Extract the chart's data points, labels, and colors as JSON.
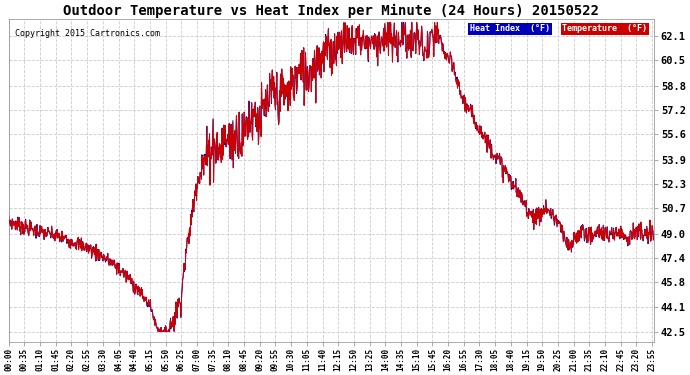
{
  "title": "Outdoor Temperature vs Heat Index per Minute (24 Hours) 20150522",
  "copyright": "Copyright 2015 Cartronics.com",
  "yticks": [
    42.5,
    44.1,
    45.8,
    47.4,
    49.0,
    50.7,
    52.3,
    53.9,
    55.6,
    57.2,
    58.8,
    60.5,
    62.1
  ],
  "ylim": [
    41.8,
    63.2
  ],
  "xlim": [
    0,
    1439
  ],
  "bg_color": "#ffffff",
  "plot_bg_color": "#ffffff",
  "grid_color": "#cccccc",
  "line_color": "#cc0000",
  "legend_heat_index_bg": "#0000bb",
  "legend_temp_bg": "#cc0000",
  "legend_heat_index_text": "Heat Index  (°F)",
  "legend_temp_text": "Temperature  (°F)",
  "xtick_labels": [
    "00:00",
    "00:35",
    "01:10",
    "01:45",
    "02:20",
    "02:55",
    "03:30",
    "04:05",
    "04:40",
    "05:15",
    "05:50",
    "06:25",
    "07:00",
    "07:35",
    "08:10",
    "08:45",
    "09:20",
    "09:55",
    "10:30",
    "11:05",
    "11:40",
    "12:15",
    "12:50",
    "13:25",
    "14:00",
    "14:35",
    "15:10",
    "15:45",
    "16:20",
    "16:55",
    "17:30",
    "18:05",
    "18:40",
    "19:15",
    "19:50",
    "20:25",
    "21:00",
    "21:35",
    "22:10",
    "22:45",
    "23:20",
    "23:55"
  ],
  "xtick_positions": [
    0,
    35,
    70,
    105,
    140,
    175,
    210,
    245,
    280,
    315,
    350,
    385,
    420,
    455,
    490,
    525,
    560,
    595,
    630,
    665,
    700,
    735,
    770,
    805,
    840,
    875,
    910,
    945,
    980,
    1015,
    1050,
    1085,
    1120,
    1155,
    1190,
    1225,
    1260,
    1295,
    1330,
    1365,
    1400,
    1435
  ],
  "curve_points": [
    [
      0,
      49.8
    ],
    [
      30,
      49.5
    ],
    [
      60,
      49.2
    ],
    [
      90,
      49.0
    ],
    [
      120,
      48.7
    ],
    [
      150,
      48.4
    ],
    [
      180,
      48.0
    ],
    [
      210,
      47.5
    ],
    [
      240,
      46.8
    ],
    [
      270,
      46.0
    ],
    [
      300,
      44.8
    ],
    [
      315,
      44.3
    ],
    [
      330,
      42.8
    ],
    [
      340,
      42.5
    ],
    [
      355,
      42.5
    ],
    [
      370,
      43.5
    ],
    [
      385,
      44.8
    ],
    [
      390,
      46.5
    ],
    [
      400,
      48.5
    ],
    [
      410,
      50.5
    ],
    [
      420,
      52.5
    ],
    [
      440,
      54.0
    ],
    [
      450,
      54.8
    ],
    [
      460,
      55.0
    ],
    [
      470,
      54.5
    ],
    [
      480,
      55.2
    ],
    [
      490,
      55.5
    ],
    [
      500,
      55.0
    ],
    [
      510,
      55.8
    ],
    [
      520,
      55.3
    ],
    [
      530,
      56.2
    ],
    [
      540,
      56.8
    ],
    [
      550,
      57.0
    ],
    [
      560,
      56.5
    ],
    [
      570,
      57.2
    ],
    [
      580,
      57.8
    ],
    [
      590,
      58.5
    ],
    [
      600,
      57.8
    ],
    [
      610,
      58.5
    ],
    [
      620,
      58.2
    ],
    [
      630,
      58.8
    ],
    [
      640,
      59.2
    ],
    [
      650,
      59.8
    ],
    [
      660,
      59.5
    ],
    [
      670,
      59.8
    ],
    [
      680,
      60.2
    ],
    [
      690,
      60.5
    ],
    [
      700,
      60.8
    ],
    [
      710,
      61.2
    ],
    [
      720,
      60.8
    ],
    [
      730,
      61.5
    ],
    [
      740,
      61.8
    ],
    [
      750,
      62.0
    ],
    [
      760,
      61.5
    ],
    [
      770,
      61.8
    ],
    [
      780,
      62.1
    ],
    [
      790,
      61.8
    ],
    [
      800,
      61.5
    ],
    [
      810,
      62.0
    ],
    [
      820,
      61.5
    ],
    [
      830,
      62.0
    ],
    [
      840,
      61.8
    ],
    [
      850,
      62.1
    ],
    [
      860,
      61.5
    ],
    [
      870,
      62.0
    ],
    [
      880,
      62.1
    ],
    [
      890,
      61.8
    ],
    [
      900,
      61.5
    ],
    [
      910,
      62.1
    ],
    [
      920,
      61.5
    ],
    [
      930,
      61.0
    ],
    [
      940,
      61.5
    ],
    [
      950,
      62.1
    ],
    [
      960,
      62.0
    ],
    [
      970,
      61.2
    ],
    [
      980,
      60.5
    ],
    [
      990,
      60.2
    ],
    [
      1000,
      59.0
    ],
    [
      1010,
      58.2
    ],
    [
      1020,
      57.5
    ],
    [
      1030,
      57.0
    ],
    [
      1040,
      56.5
    ],
    [
      1050,
      56.0
    ],
    [
      1060,
      55.5
    ],
    [
      1070,
      55.0
    ],
    [
      1080,
      54.5
    ],
    [
      1090,
      54.0
    ],
    [
      1100,
      53.5
    ],
    [
      1110,
      53.0
    ],
    [
      1120,
      52.5
    ],
    [
      1130,
      52.0
    ],
    [
      1140,
      51.5
    ],
    [
      1150,
      51.0
    ],
    [
      1160,
      50.5
    ],
    [
      1170,
      50.2
    ],
    [
      1180,
      50.0
    ],
    [
      1190,
      50.5
    ],
    [
      1200,
      50.7
    ],
    [
      1210,
      50.3
    ],
    [
      1220,
      50.0
    ],
    [
      1230,
      49.5
    ],
    [
      1240,
      48.5
    ],
    [
      1250,
      48.0
    ],
    [
      1260,
      48.5
    ],
    [
      1270,
      49.0
    ],
    [
      1280,
      49.2
    ],
    [
      1290,
      49.0
    ],
    [
      1300,
      48.8
    ],
    [
      1310,
      49.0
    ],
    [
      1320,
      49.2
    ],
    [
      1330,
      49.0
    ],
    [
      1340,
      48.8
    ],
    [
      1350,
      49.0
    ],
    [
      1360,
      49.2
    ],
    [
      1370,
      49.0
    ],
    [
      1380,
      48.8
    ],
    [
      1390,
      49.0
    ],
    [
      1400,
      49.2
    ],
    [
      1410,
      49.0
    ],
    [
      1420,
      48.8
    ],
    [
      1430,
      49.0
    ],
    [
      1439,
      49.0
    ]
  ]
}
